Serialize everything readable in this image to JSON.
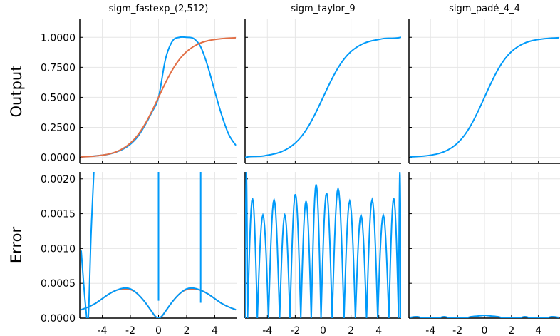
{
  "chart_data": {
    "type": "line",
    "x_range": [
      -5.6,
      5.6
    ],
    "x_ticks": [
      -4,
      -2,
      0,
      2,
      4
    ],
    "x_tick_labels": [
      "-4",
      "-2",
      "0",
      "2",
      "4"
    ],
    "row_labels": [
      "Output",
      "Error"
    ],
    "grid": true,
    "legend": "none",
    "colors": {
      "series1": "#009af9",
      "series2": "#e26f46",
      "grid": "#e6e6e6",
      "axis": "#000000"
    },
    "rows": [
      {
        "ylabel": "Output",
        "ylim": [
          -0.05,
          1.15
        ],
        "y_ticks": [
          0.0,
          0.25,
          0.5,
          0.75,
          1.0
        ],
        "y_tick_labels": [
          "0.0000",
          "0.2500",
          "0.5000",
          "0.7500",
          "1.0000"
        ]
      },
      {
        "ylabel": "Error",
        "ylim": [
          0.0,
          0.0021
        ],
        "y_ticks": [
          0.0,
          0.0005,
          0.001,
          0.0015,
          0.002
        ],
        "y_tick_labels": [
          "0.0000",
          "0.0005",
          "0.0010",
          "0.0015",
          "0.0020"
        ]
      }
    ],
    "panels": [
      {
        "title": "sigm_fastexp_(2,512)",
        "output": {
          "series": [
            {
              "color": "#009af9",
              "x": [
                -5.5,
                -5,
                -4.5,
                -4,
                -3.5,
                -3,
                -2.5,
                -2,
                -1.5,
                -1,
                -0.5,
                0,
                0.5,
                1,
                1.5,
                2,
                2.5,
                3,
                3.5,
                4,
                4.5,
                5,
                5.5
              ],
              "y": [
                0.004,
                0.008,
                0.012,
                0.018,
                0.028,
                0.045,
                0.07,
                0.11,
                0.17,
                0.26,
                0.37,
                0.5,
                0.82,
                0.97,
                1.0,
                1.0,
                0.99,
                0.92,
                0.76,
                0.55,
                0.35,
                0.19,
                0.1
              ]
            },
            {
              "color": "#e26f46",
              "x": [
                -5.5,
                -5,
                -4.5,
                -4,
                -3.5,
                -3,
                -2.5,
                -2,
                -1.5,
                -1,
                -0.5,
                0,
                0.5,
                1,
                1.5,
                2,
                2.5,
                3,
                3.5,
                4,
                4.5,
                5,
                5.5
              ],
              "y": [
                0.004,
                0.007,
                0.011,
                0.018,
                0.029,
                0.047,
                0.076,
                0.119,
                0.182,
                0.269,
                0.378,
                0.5,
                0.622,
                0.731,
                0.818,
                0.881,
                0.924,
                0.953,
                0.971,
                0.982,
                0.989,
                0.993,
                0.996
              ]
            }
          ]
        },
        "error": {
          "series": [
            {
              "color": "#009af9",
              "x": [
                -5.5,
                -5.2,
                -5.0,
                -4.8,
                -4.6
              ],
              "y": [
                0.00097,
                0.0002,
                0.0,
                0.0012,
                0.0021
              ]
            },
            {
              "color": "#009af9",
              "x": [
                0.0,
                0.0
              ],
              "y": [
                0.00025,
                0.0021
              ]
            },
            {
              "color": "#009af9",
              "x": [
                3.0,
                3.0
              ],
              "y": [
                0.00022,
                0.0021
              ]
            },
            {
              "color": "#e26f46",
              "x": [
                -5.5,
                -5,
                -4.5,
                -4,
                -3.5,
                -3,
                -2.5,
                -2,
                -1.5,
                -1,
                -0.5,
                -0.25,
                0,
                0.25,
                0.5,
                1,
                1.5,
                2,
                2.5,
                3,
                3.5,
                4,
                4.5,
                5,
                5.5
              ],
              "y": [
                0.00012,
                0.00016,
                0.00021,
                0.00028,
                0.00035,
                0.0004,
                0.00042,
                0.00041,
                0.00035,
                0.00024,
                0.0001,
                3e-05,
                0.0,
                3e-05,
                0.0001,
                0.00024,
                0.00035,
                0.00041,
                0.00042,
                0.0004,
                0.00035,
                0.00028,
                0.00021,
                0.00016,
                0.00012
              ]
            },
            {
              "color": "#009af9",
              "x": [
                -5.5,
                -5,
                -4.5,
                -4,
                -3.5,
                -3,
                -2.5,
                -2,
                -1.5,
                -1,
                -0.5,
                -0.25,
                0,
                0.25,
                0.5,
                1,
                1.5,
                2,
                2.5,
                3,
                3.5,
                4,
                4.5,
                5,
                5.5
              ],
              "y": [
                0.00012,
                0.00016,
                0.00021,
                0.00028,
                0.00035,
                0.0004,
                0.00043,
                0.00042,
                0.00035,
                0.00024,
                0.0001,
                3e-05,
                0.0,
                3e-05,
                0.0001,
                0.00024,
                0.00035,
                0.00042,
                0.00043,
                0.0004,
                0.00035,
                0.00028,
                0.00021,
                0.00016,
                0.00012
              ]
            }
          ]
        }
      },
      {
        "title": "sigm_taylor_9",
        "output": {
          "series": [
            {
              "color": "#009af9",
              "x": [
                -5.6,
                -5.2,
                -4.8,
                -4.4,
                -4,
                -3.5,
                -3,
                -2.5,
                -2,
                -1.5,
                -1,
                -0.5,
                0,
                0.5,
                1,
                1.5,
                2,
                2.5,
                3,
                3.5,
                4,
                4.4,
                4.8,
                5.2,
                5.6
              ],
              "y": [
                0.0,
                0.007,
                0.008,
                0.01,
                0.018,
                0.029,
                0.047,
                0.076,
                0.119,
                0.182,
                0.269,
                0.378,
                0.5,
                0.622,
                0.731,
                0.818,
                0.881,
                0.924,
                0.953,
                0.971,
                0.982,
                0.99,
                0.992,
                0.993,
                1.0
              ]
            }
          ]
        },
        "error": {
          "peaks": [
            {
              "x": -5.58,
              "y": 0.0021
            },
            {
              "x": -5.15,
              "y": 0.00172
            },
            {
              "x": -4.3,
              "y": 0.00148
            },
            {
              "x": -3.5,
              "y": 0.0017
            },
            {
              "x": -2.75,
              "y": 0.00148
            },
            {
              "x": -2.0,
              "y": 0.00178
            },
            {
              "x": -1.2,
              "y": 0.00168
            },
            {
              "x": -0.55,
              "y": 0.00192
            },
            {
              "x": 0.25,
              "y": 0.0018
            },
            {
              "x": 1.05,
              "y": 0.00186
            },
            {
              "x": 1.95,
              "y": 0.00168
            },
            {
              "x": 2.7,
              "y": 0.00148
            },
            {
              "x": 3.55,
              "y": 0.0017
            },
            {
              "x": 4.3,
              "y": 0.00148
            },
            {
              "x": 5.15,
              "y": 0.00172
            },
            {
              "x": 5.58,
              "y": 0.0021
            }
          ],
          "zeros": [
            -5.42,
            -4.72,
            -3.92,
            -3.12,
            -2.38,
            -1.6,
            -0.85,
            -0.15,
            0.65,
            1.5,
            2.32,
            3.12,
            3.92,
            4.72,
            5.42
          ],
          "color": "#009af9"
        }
      },
      {
        "title": "sigm_padé_4_4",
        "output": {
          "series": [
            {
              "color": "#009af9",
              "x": [
                -5.5,
                -5,
                -4.5,
                -4,
                -3.5,
                -3,
                -2.5,
                -2,
                -1.5,
                -1,
                -0.5,
                0,
                0.5,
                1,
                1.5,
                2,
                2.5,
                3,
                3.5,
                4,
                4.5,
                5,
                5.5
              ],
              "y": [
                0.004,
                0.007,
                0.011,
                0.018,
                0.029,
                0.047,
                0.076,
                0.119,
                0.182,
                0.269,
                0.378,
                0.5,
                0.622,
                0.731,
                0.818,
                0.881,
                0.924,
                0.953,
                0.971,
                0.982,
                0.989,
                0.993,
                0.996
              ]
            }
          ]
        },
        "error": {
          "series": [
            {
              "color": "#009af9",
              "x": [
                -5.5,
                -5,
                -4.5,
                -4,
                -3.5,
                -3,
                -2.5,
                -2,
                -1.5,
                -1,
                -0.5,
                0,
                0.5,
                1,
                1.5,
                2,
                2.5,
                3,
                3.5,
                4,
                4.5,
                5,
                5.5
              ],
              "y": [
                1e-05,
                2e-05,
                0.0,
                1e-05,
                0.0,
                2e-05,
                0.0,
                1e-05,
                0.0,
                2e-05,
                3e-05,
                4e-05,
                3e-05,
                2e-05,
                0.0,
                1e-05,
                0.0,
                2e-05,
                0.0,
                1e-05,
                0.0,
                2e-05,
                1e-05
              ]
            }
          ]
        }
      }
    ]
  }
}
